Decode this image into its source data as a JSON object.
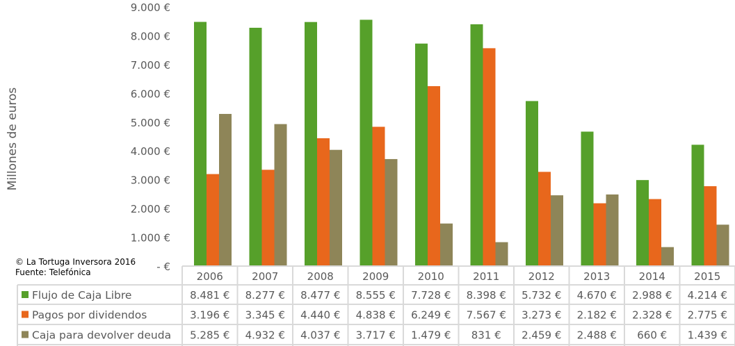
{
  "chart_data": {
    "type": "bar",
    "ylabel": "Millones de euros",
    "ylim": [
      0,
      9000
    ],
    "yticks": [
      "-   €",
      "1.000 €",
      "2.000 €",
      "3.000 €",
      "4.000 €",
      "5.000 €",
      "6.000 €",
      "7.000 €",
      "8.000 €",
      "9.000 €"
    ],
    "ytick_values": [
      0,
      1000,
      2000,
      3000,
      4000,
      5000,
      6000,
      7000,
      8000,
      9000
    ],
    "grid": false,
    "legend": "data-table",
    "categories": [
      "2006",
      "2007",
      "2008",
      "2009",
      "2010",
      "2011",
      "2012",
      "2013",
      "2014",
      "2015"
    ],
    "series": [
      {
        "name": "Flujo de Caja Libre",
        "color": "#56a02a",
        "values": [
          8481,
          8277,
          8477,
          8555,
          7728,
          8398,
          5732,
          4670,
          2988,
          4214
        ],
        "labels": [
          "8.481 €",
          "8.277 €",
          "8.477 €",
          "8.555 €",
          "7.728 €",
          "8.398 €",
          "5.732 €",
          "4.670 €",
          "2.988 €",
          "4.214 €"
        ]
      },
      {
        "name": "Pagos por dividendos",
        "color": "#e8671c",
        "values": [
          3196,
          3345,
          4440,
          4838,
          6249,
          7567,
          3273,
          2182,
          2328,
          2775
        ],
        "labels": [
          "3.196 €",
          "3.345 €",
          "4.440 €",
          "4.838 €",
          "6.249 €",
          "7.567 €",
          "3.273 €",
          "2.182 €",
          "2.328 €",
          "2.775 €"
        ]
      },
      {
        "name": "Caja para devolver deuda",
        "color": "#8e8558",
        "values": [
          5285,
          4932,
          4037,
          3717,
          1479,
          831,
          2459,
          2488,
          660,
          1439
        ],
        "labels": [
          "5.285 €",
          "4.932 €",
          "4.037 €",
          "3.717 €",
          "1.479 €",
          "831 €",
          "2.459 €",
          "2.488 €",
          "660 €",
          "1.439 €"
        ]
      }
    ],
    "annotations": [
      "© La Tortuga Inversora 2016",
      "Fuente: Telefónica"
    ]
  }
}
